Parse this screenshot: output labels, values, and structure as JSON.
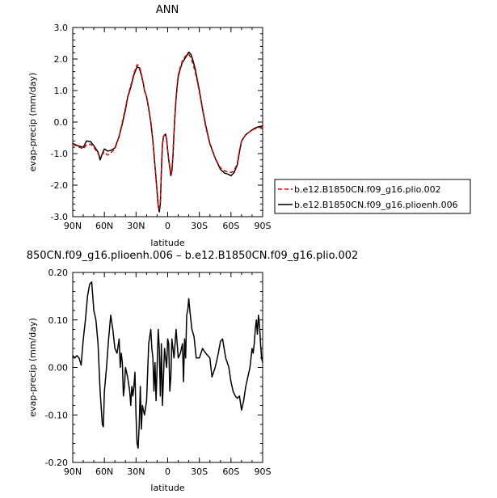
{
  "chart_data": [
    {
      "type": "line",
      "title": "ANN",
      "xlabel": "latitude",
      "ylabel": "evap-precip (mm/day)",
      "xlim": [
        90,
        -90
      ],
      "ylim": [
        -3.0,
        3.0
      ],
      "xticks": [
        90,
        60,
        30,
        0,
        -30,
        -60,
        -90
      ],
      "xtick_labels": [
        "90N",
        "60N",
        "30N",
        "0",
        "30S",
        "60S",
        "90S"
      ],
      "yticks": [
        -3.0,
        -2.0,
        -1.0,
        0.0,
        1.0,
        2.0,
        3.0
      ],
      "ytick_labels": [
        "-3.0",
        "-2.0",
        "-1.0",
        "0.0",
        "1.0",
        "2.0",
        "3.0"
      ],
      "legend_position": "right",
      "series": [
        {
          "name": "b.e12.B1850CN.f09_g16.plio.002",
          "color": "#dd0000",
          "dashed": true,
          "x": [
            90,
            85,
            80,
            77,
            73,
            70,
            66,
            64,
            62,
            60,
            57,
            54,
            50,
            46,
            43,
            40,
            38,
            35,
            32,
            29,
            27,
            25,
            23,
            22,
            20,
            18,
            16,
            14,
            12,
            10,
            9,
            8,
            7,
            6,
            5,
            4,
            2,
            1,
            0,
            -1,
            -2,
            -3,
            -4,
            -5,
            -6,
            -7,
            -8,
            -9,
            -10,
            -12,
            -14,
            -17,
            -20,
            -22,
            -24,
            -26,
            -28,
            -30,
            -33,
            -36,
            -40,
            -45,
            -50,
            -54,
            -57,
            -60,
            -63,
            -66,
            -68,
            -70,
            -74,
            -78,
            -82,
            -86,
            -90
          ],
          "y": [
            -0.7,
            -0.78,
            -0.85,
            -0.72,
            -0.7,
            -0.8,
            -1.0,
            -1.1,
            -1.02,
            -0.95,
            -1.05,
            -0.98,
            -0.85,
            -0.45,
            0.0,
            0.45,
            0.8,
            1.15,
            1.55,
            1.82,
            1.78,
            1.55,
            1.2,
            1.0,
            0.8,
            0.45,
            0.0,
            -0.6,
            -1.4,
            -2.2,
            -2.65,
            -2.75,
            -2.55,
            -1.5,
            -0.7,
            -0.45,
            -0.4,
            -0.55,
            -0.9,
            -1.2,
            -1.4,
            -1.65,
            -1.5,
            -1.05,
            -0.3,
            0.3,
            0.8,
            1.2,
            1.5,
            1.75,
            1.95,
            2.1,
            2.15,
            2.05,
            1.85,
            1.6,
            1.3,
            0.95,
            0.4,
            -0.15,
            -0.7,
            -1.15,
            -1.45,
            -1.55,
            -1.58,
            -1.6,
            -1.55,
            -1.3,
            -0.9,
            -0.6,
            -0.4,
            -0.3,
            -0.22,
            -0.18,
            -0.15
          ]
        },
        {
          "name": "b.e12.B1850CN.f09_g16.plioenh.006",
          "color": "#000000",
          "dashed": false,
          "x": [
            90,
            85,
            80,
            77,
            73,
            70,
            66,
            64,
            62,
            60,
            57,
            54,
            50,
            46,
            43,
            40,
            38,
            35,
            32,
            29,
            27,
            25,
            23,
            22,
            20,
            18,
            16,
            14,
            12,
            10,
            9,
            8,
            7,
            6,
            5,
            4,
            2,
            1,
            0,
            -1,
            -2,
            -3,
            -4,
            -5,
            -6,
            -7,
            -8,
            -9,
            -10,
            -12,
            -14,
            -17,
            -20,
            -22,
            -24,
            -26,
            -28,
            -30,
            -33,
            -36,
            -40,
            -45,
            -50,
            -54,
            -57,
            -60,
            -63,
            -66,
            -68,
            -70,
            -74,
            -78,
            -82,
            -86,
            -90
          ],
          "y": [
            -0.68,
            -0.75,
            -0.8,
            -0.6,
            -0.62,
            -0.75,
            -0.95,
            -1.2,
            -1.0,
            -0.85,
            -0.92,
            -0.9,
            -0.82,
            -0.45,
            -0.05,
            0.4,
            0.78,
            1.1,
            1.5,
            1.75,
            1.72,
            1.5,
            1.2,
            1.0,
            0.8,
            0.42,
            0.0,
            -0.6,
            -1.4,
            -2.2,
            -2.65,
            -2.85,
            -2.6,
            -1.55,
            -0.72,
            -0.45,
            -0.38,
            -0.55,
            -0.9,
            -1.2,
            -1.45,
            -1.7,
            -1.55,
            -1.1,
            -0.35,
            0.25,
            0.75,
            1.15,
            1.45,
            1.7,
            1.9,
            2.05,
            2.22,
            2.15,
            1.95,
            1.7,
            1.35,
            1.0,
            0.42,
            -0.1,
            -0.68,
            -1.15,
            -1.5,
            -1.62,
            -1.65,
            -1.7,
            -1.6,
            -1.35,
            -0.95,
            -0.6,
            -0.4,
            -0.3,
            -0.2,
            -0.15,
            -0.12
          ]
        }
      ]
    },
    {
      "type": "line",
      "title": "850CN.f09_g16.plioenh.006 – b.e12.B1850CN.f09_g16.plio.002",
      "xlabel": "latitude",
      "ylabel": "evap-precip (mm/day)",
      "xlim": [
        90,
        -90
      ],
      "ylim": [
        -0.2,
        0.2
      ],
      "xticks": [
        90,
        60,
        30,
        0,
        -30,
        -60,
        -90
      ],
      "xtick_labels": [
        "90N",
        "60N",
        "30N",
        "0",
        "30S",
        "60S",
        "90S"
      ],
      "yticks": [
        -0.2,
        -0.1,
        0.0,
        0.1,
        0.2
      ],
      "ytick_labels": [
        "-0.20",
        "-0.10",
        "0.00",
        "0.10",
        "0.20"
      ],
      "series": [
        {
          "color": "#000000",
          "x": [
            90,
            88,
            86,
            84,
            82,
            80,
            78,
            76,
            74,
            72,
            70,
            68,
            66,
            64,
            62,
            61,
            60,
            58,
            56,
            54,
            52,
            50,
            48,
            46,
            45,
            44,
            43,
            42,
            41,
            40,
            38,
            36,
            35,
            34,
            33,
            32,
            31,
            30,
            29,
            28,
            27,
            26,
            25,
            24,
            22,
            20,
            18,
            16,
            15,
            14,
            13,
            12,
            11,
            10,
            9,
            8,
            7,
            6,
            5,
            4,
            3,
            2,
            1,
            0,
            -1,
            -2,
            -3,
            -4,
            -6,
            -8,
            -10,
            -12,
            -14,
            -15,
            -16,
            -17,
            -18,
            -19,
            -20,
            -21,
            -22,
            -23,
            -25,
            -27,
            -30,
            -33,
            -36,
            -40,
            -42,
            -45,
            -48,
            -50,
            -52,
            -55,
            -58,
            -60,
            -62,
            -64,
            -66,
            -68,
            -70,
            -72,
            -74,
            -76,
            -78,
            -80,
            -81,
            -82,
            -83,
            -84,
            -85,
            -86,
            -87,
            -88,
            -89,
            -90
          ],
          "y": [
            0.025,
            0.02,
            0.025,
            0.02,
            0.005,
            0.06,
            0.1,
            0.15,
            0.175,
            0.18,
            0.12,
            0.1,
            0.05,
            -0.05,
            -0.12,
            -0.125,
            -0.05,
            0.0,
            0.06,
            0.11,
            0.08,
            0.04,
            0.03,
            0.06,
            0.0,
            0.03,
            0.01,
            -0.06,
            -0.04,
            0.0,
            -0.02,
            -0.05,
            -0.08,
            -0.04,
            -0.06,
            -0.04,
            -0.01,
            -0.1,
            -0.16,
            -0.17,
            -0.12,
            -0.04,
            -0.13,
            -0.08,
            -0.1,
            -0.07,
            0.05,
            0.08,
            0.04,
            0.02,
            -0.05,
            0.01,
            -0.07,
            0.0,
            0.08,
            0.04,
            -0.06,
            0.05,
            -0.08,
            -0.02,
            0.04,
            0.02,
            0.0,
            0.06,
            0.05,
            -0.05,
            -0.02,
            0.06,
            0.02,
            0.08,
            0.02,
            0.03,
            0.05,
            -0.03,
            0.06,
            0.02,
            0.11,
            0.12,
            0.145,
            0.12,
            0.1,
            0.08,
            0.065,
            0.02,
            0.02,
            0.04,
            0.03,
            0.02,
            -0.02,
            0.0,
            0.03,
            0.055,
            0.06,
            0.02,
            0.0,
            -0.03,
            -0.05,
            -0.06,
            -0.065,
            -0.06,
            -0.09,
            -0.07,
            -0.04,
            -0.02,
            0.0,
            0.04,
            0.03,
            0.05,
            0.08,
            0.1,
            0.07,
            0.11,
            0.09,
            0.05,
            0.02,
            0.01
          ]
        }
      ]
    }
  ]
}
